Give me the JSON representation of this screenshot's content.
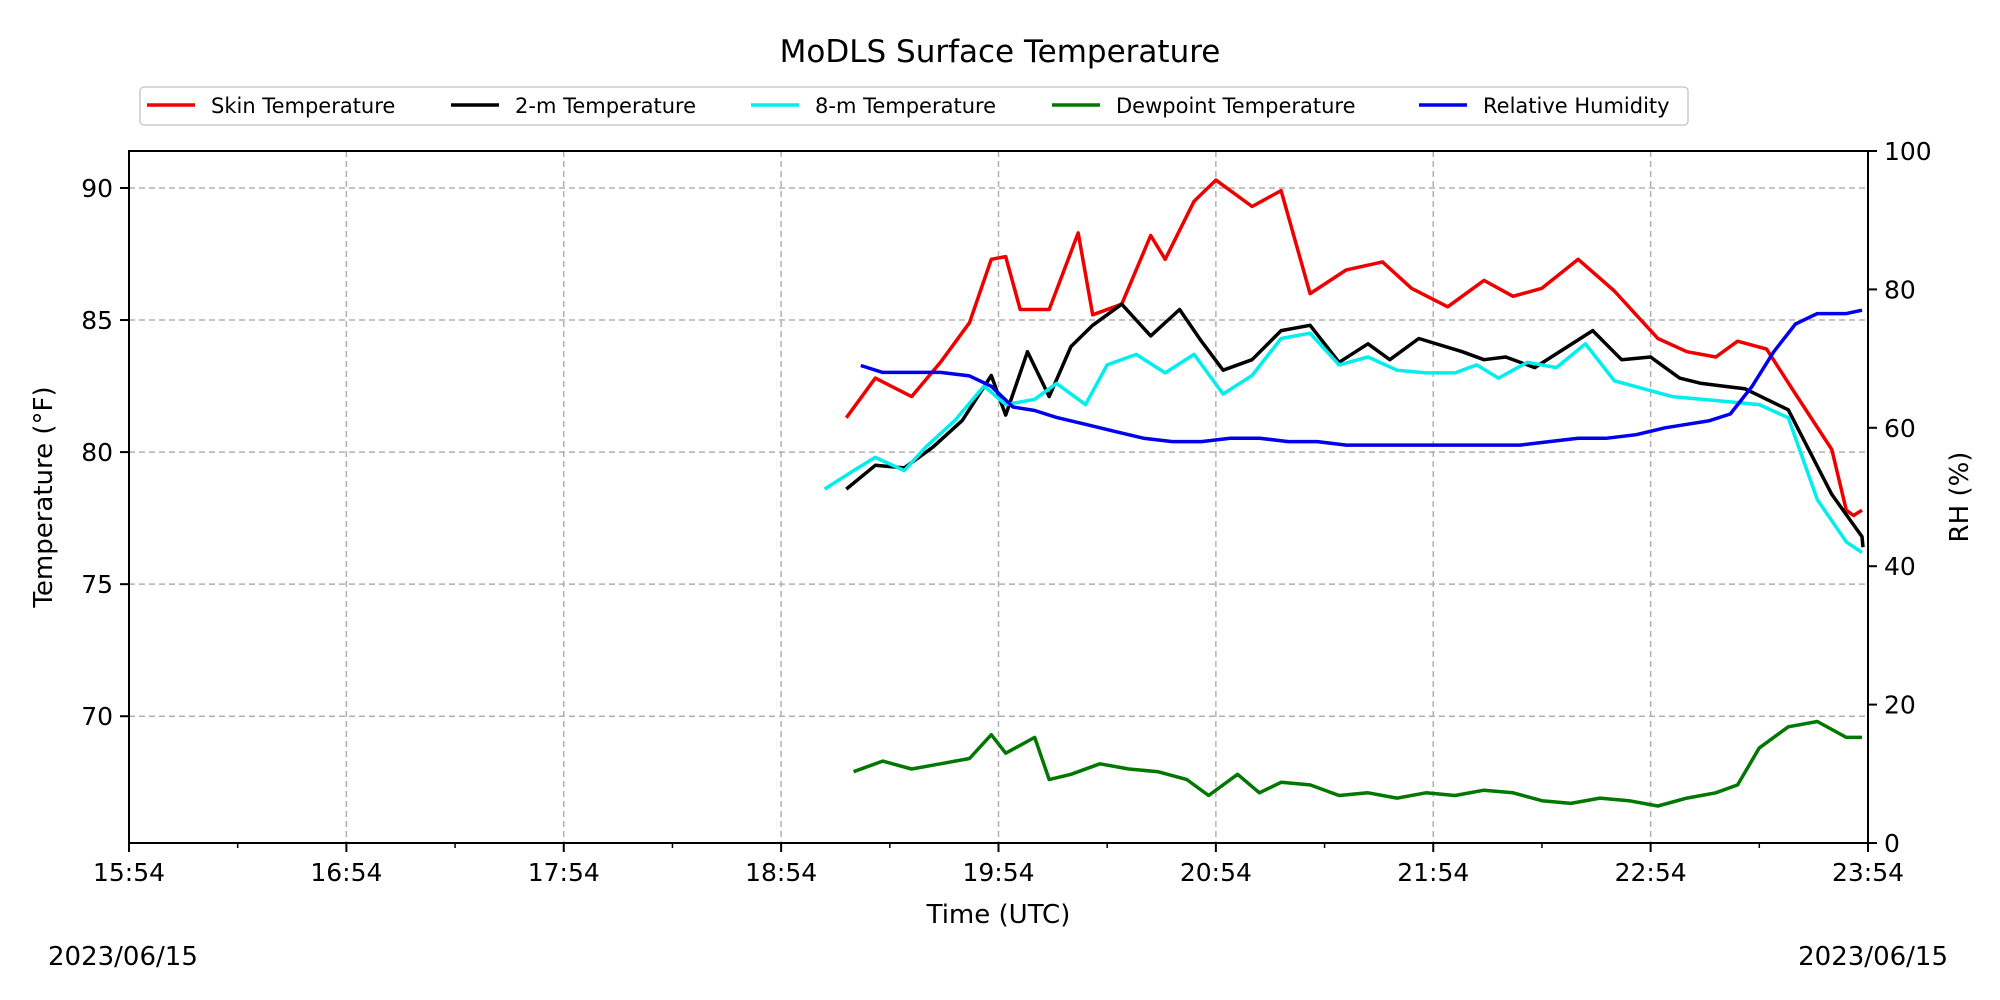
{
  "dates": {
    "left": "2023/06/15",
    "right": "2023/06/15"
  },
  "colors": {
    "skin": "#ee0000",
    "t2m": "#000000",
    "t8m": "#00eeee",
    "dewpoint": "#007700",
    "rh": "#0000ee",
    "grid": "#b0b0b0"
  },
  "chart_data": {
    "type": "line",
    "title": "MoDLS Surface Temperature",
    "xlabel": "Time (UTC)",
    "ylabel": "Temperature (°F)",
    "y2label": "RH (%)",
    "grid": true,
    "legend_position": "top",
    "xlim": [
      "15:54",
      "23:54"
    ],
    "ylim": [
      65.2,
      91.4
    ],
    "y2lim": [
      0,
      100
    ],
    "x_ticks": [
      "15:54",
      "16:54",
      "17:54",
      "18:54",
      "19:54",
      "20:54",
      "21:54",
      "22:54",
      "23:54"
    ],
    "y_ticks": [
      70,
      75,
      80,
      85,
      90
    ],
    "y2_ticks": [
      0,
      20,
      40,
      60,
      80,
      100
    ],
    "series": [
      {
        "name": "Skin Temperature",
        "axis": "left",
        "x": [
          "19:12",
          "19:20",
          "19:30",
          "19:38",
          "19:46",
          "19:52",
          "19:56",
          "20:00",
          "20:08",
          "20:16",
          "20:20",
          "20:28",
          "20:36",
          "20:40",
          "20:48",
          "20:54",
          "21:04",
          "21:12",
          "21:20",
          "21:30",
          "21:40",
          "21:48",
          "21:58",
          "22:08",
          "22:16",
          "22:24",
          "22:34",
          "22:44",
          "22:50",
          "22:56",
          "23:04",
          "23:12",
          "23:18",
          "23:26",
          "23:34",
          "23:44",
          "23:48"
        ],
        "y": [
          81.3,
          82.8,
          82.1,
          83.4,
          84.9,
          87.3,
          87.4,
          85.4,
          85.4,
          88.3,
          85.2,
          85.6,
          88.2,
          87.3,
          89.5,
          90.3,
          89.3,
          89.9,
          86.0,
          86.9,
          87.2,
          86.2,
          85.5,
          86.5,
          85.9,
          86.2,
          87.3,
          86.1,
          85.2,
          84.3,
          83.8,
          83.6,
          84.2,
          83.9,
          82.2,
          80.1,
          77.8
        ],
        "y_tail": {
          "x": [
            "23:50",
            "23:54"
          ],
          "y": [
            77.6,
            77.8
          ]
        }
      },
      {
        "name": "2-m Temperature",
        "axis": "left",
        "x": [
          "19:12",
          "19:20",
          "19:28",
          "19:36",
          "19:44",
          "19:52",
          "19:56",
          "20:02",
          "20:08",
          "20:14",
          "20:20",
          "20:28",
          "20:36",
          "20:44",
          "20:50",
          "20:56",
          "21:04",
          "21:12",
          "21:20",
          "21:28",
          "21:36",
          "21:42",
          "21:50",
          "22:02",
          "22:08",
          "22:14",
          "22:22",
          "22:30",
          "22:38",
          "22:46",
          "22:54",
          "23:02",
          "23:08",
          "23:14",
          "23:20",
          "23:26",
          "23:32",
          "23:44",
          "23:54"
        ],
        "y": [
          78.6,
          79.5,
          79.4,
          80.2,
          81.2,
          82.9,
          81.4,
          83.8,
          82.1,
          84.0,
          84.8,
          85.6,
          84.4,
          85.4,
          84.2,
          83.1,
          83.5,
          84.6,
          84.8,
          83.4,
          84.1,
          83.5,
          84.3,
          83.8,
          83.5,
          83.6,
          83.2,
          83.9,
          84.6,
          83.5,
          83.6,
          82.8,
          82.6,
          82.5,
          82.4,
          82.0,
          81.6,
          78.4,
          76.8
        ],
        "y_tail": {
          "x": [
            "23:56"
          ],
          "y": [
            76.4
          ]
        }
      },
      {
        "name": "8-m Temperature",
        "axis": "left",
        "x": [
          "19:06",
          "19:14",
          "19:20",
          "19:28",
          "19:34",
          "19:42",
          "19:50",
          "19:56",
          "20:04",
          "20:10",
          "20:18",
          "20:24",
          "20:32",
          "20:40",
          "20:48",
          "20:56",
          "21:04",
          "21:12",
          "21:20",
          "21:28",
          "21:36",
          "21:44",
          "21:52",
          "22:00",
          "22:06",
          "22:12",
          "22:20",
          "22:28",
          "22:36",
          "22:44",
          "22:52",
          "23:00",
          "23:08",
          "23:16",
          "23:24",
          "23:32",
          "23:40",
          "23:48",
          "23:54"
        ],
        "y": [
          78.6,
          79.3,
          79.8,
          79.3,
          80.2,
          81.2,
          82.5,
          81.8,
          82.0,
          82.6,
          81.8,
          83.3,
          83.7,
          83.0,
          83.7,
          82.2,
          82.9,
          84.3,
          84.5,
          83.3,
          83.6,
          83.1,
          83.0,
          83.0,
          83.3,
          82.8,
          83.4,
          83.2,
          84.1,
          82.7,
          82.4,
          82.1,
          82.0,
          81.9,
          81.8,
          81.3,
          78.2,
          76.6,
          76.2
        ],
        "y_tail": {
          "x": [],
          "y": []
        }
      },
      {
        "name": "Dewpoint Temperature",
        "axis": "left",
        "x": [
          "19:14",
          "19:22",
          "19:30",
          "19:38",
          "19:46",
          "19:52",
          "19:56",
          "20:04",
          "20:08",
          "20:14",
          "20:22",
          "20:30",
          "20:38",
          "20:46",
          "20:52",
          "21:00",
          "21:06",
          "21:12",
          "21:20",
          "21:28",
          "21:36",
          "21:44",
          "21:52",
          "22:00",
          "22:08",
          "22:16",
          "22:24",
          "22:32",
          "22:40",
          "22:48",
          "22:56",
          "23:04",
          "23:12",
          "23:18",
          "23:24",
          "23:32",
          "23:40",
          "23:48",
          "23:54"
        ],
        "y": [
          67.9,
          68.3,
          68.0,
          68.2,
          68.4,
          69.3,
          68.6,
          69.2,
          67.6,
          67.8,
          68.2,
          68.0,
          67.9,
          67.6,
          67.0,
          67.8,
          67.1,
          67.5,
          67.4,
          67.0,
          67.1,
          66.9,
          67.1,
          67.0,
          67.2,
          67.1,
          66.8,
          66.7,
          66.9,
          66.8,
          66.6,
          66.9,
          67.1,
          67.4,
          68.8,
          69.6,
          69.8,
          69.2,
          69.2
        ],
        "y_tail": {
          "x": [],
          "y": []
        }
      },
      {
        "name": "Relative Humidity",
        "axis": "right",
        "x": [
          "19:16",
          "19:22",
          "19:30",
          "19:38",
          "19:46",
          "19:52",
          "19:58",
          "20:04",
          "20:10",
          "20:18",
          "20:26",
          "20:34",
          "20:42",
          "20:50",
          "20:58",
          "21:06",
          "21:14",
          "21:22",
          "21:30",
          "21:38",
          "21:46",
          "21:54",
          "22:02",
          "22:10",
          "22:18",
          "22:26",
          "22:34",
          "22:42",
          "22:50",
          "22:58",
          "23:04",
          "23:10",
          "23:16",
          "23:22",
          "23:28",
          "23:34",
          "23:40",
          "23:48",
          "23:54"
        ],
        "y": [
          69.0,
          68.0,
          68.0,
          68.0,
          67.5,
          66.0,
          63.0,
          62.5,
          61.5,
          60.5,
          59.5,
          58.5,
          58.0,
          58.0,
          58.5,
          58.5,
          58.0,
          58.0,
          57.5,
          57.5,
          57.5,
          57.5,
          57.5,
          57.5,
          57.5,
          58.0,
          58.5,
          58.5,
          59.0,
          60.0,
          60.5,
          61.0,
          62.0,
          66.0,
          71.0,
          75.0,
          76.5,
          76.5,
          77.0
        ],
        "y_tail": {
          "x": [],
          "y": []
        }
      }
    ]
  }
}
